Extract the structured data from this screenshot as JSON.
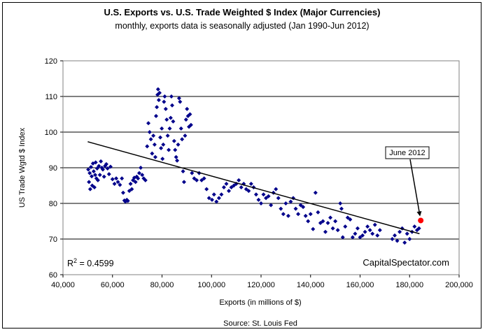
{
  "chart_data": {
    "type": "scatter",
    "title": "U.S. Exports vs. U.S. Trade Weighted $ Index (Major Currencies)",
    "subtitle": "monthly, exports data is seasonally adjusted (Jan 1990-Jun 2012)",
    "xlabel": "Exports (in millions of $)",
    "ylabel": "US Trade Wgtd $ Index",
    "source": "Source: St. Louis Fed",
    "brand": "CapitalSpectator.com",
    "r2_label": "R",
    "r2_sup": "2",
    "r2_value": " = 0.4599",
    "xlim": [
      40000,
      200000
    ],
    "ylim": [
      60,
      120
    ],
    "x_ticks": [
      "40,000",
      "60,000",
      "80,000",
      "100,000",
      "120,000",
      "140,000",
      "160,000",
      "180,000",
      "200,000"
    ],
    "y_ticks": [
      "60",
      "70",
      "80",
      "90",
      "100",
      "110",
      "120"
    ],
    "grid": "horizontal major gridlines",
    "trendline": {
      "x": [
        50000,
        184000
      ],
      "y": [
        97.3,
        71.5
      ]
    },
    "highlight": {
      "label": "June 2012",
      "x": 184500,
      "y": 75.2,
      "color": "#ff0000"
    },
    "series": [
      {
        "color": "#00008b",
        "points": [
          [
            50200,
            89.5
          ],
          [
            50500,
            86.0
          ],
          [
            50800,
            88.5
          ],
          [
            51000,
            84.0
          ],
          [
            51300,
            90.2
          ],
          [
            51600,
            87.6
          ],
          [
            51800,
            85.0
          ],
          [
            52100,
            91.2
          ],
          [
            52400,
            89.0
          ],
          [
            52700,
            84.5
          ],
          [
            53000,
            88.0
          ],
          [
            53200,
            91.5
          ],
          [
            53500,
            87.0
          ],
          [
            53800,
            89.8
          ],
          [
            54100,
            86.5
          ],
          [
            54500,
            90.5
          ],
          [
            54900,
            88.0
          ],
          [
            55300,
            91.8
          ],
          [
            55700,
            90.0
          ],
          [
            56100,
            89.5
          ],
          [
            56600,
            87.5
          ],
          [
            57000,
            90.5
          ],
          [
            57500,
            91.0
          ],
          [
            58000,
            89.8
          ],
          [
            58600,
            88.2
          ],
          [
            59200,
            90.3
          ],
          [
            60000,
            86.8
          ],
          [
            60800,
            85.5
          ],
          [
            61500,
            87.0
          ],
          [
            62200,
            86.0
          ],
          [
            63000,
            85.2
          ],
          [
            63800,
            87.0
          ],
          [
            64300,
            83.0
          ],
          [
            64800,
            80.8
          ],
          [
            65200,
            80.5
          ],
          [
            65800,
            81.0
          ],
          [
            66200,
            80.7
          ],
          [
            66800,
            83.5
          ],
          [
            67300,
            85.5
          ],
          [
            67800,
            84.0
          ],
          [
            68300,
            86.5
          ],
          [
            68800,
            87.2
          ],
          [
            69300,
            86.0
          ],
          [
            69800,
            87.5
          ],
          [
            70300,
            87.0
          ],
          [
            70800,
            88.5
          ],
          [
            71400,
            90.0
          ],
          [
            72000,
            88.0
          ],
          [
            72600,
            87.0
          ],
          [
            73300,
            86.5
          ],
          [
            74000,
            96.0
          ],
          [
            74500,
            102.5
          ],
          [
            75000,
            100.0
          ],
          [
            75500,
            98.0
          ],
          [
            76000,
            94.0
          ],
          [
            76500,
            99.0
          ],
          [
            77000,
            96.5
          ],
          [
            77300,
            93.0
          ],
          [
            77600,
            104.5
          ],
          [
            77900,
            107.0
          ],
          [
            78200,
            110.5
          ],
          [
            78400,
            112.0
          ],
          [
            78700,
            109.0
          ],
          [
            79000,
            111.0
          ],
          [
            79300,
            98.5
          ],
          [
            79600,
            95.5
          ],
          [
            79900,
            101.0
          ],
          [
            80200,
            92.5
          ],
          [
            80500,
            96.5
          ],
          [
            80800,
            108.5
          ],
          [
            81100,
            110.0
          ],
          [
            81500,
            106.5
          ],
          [
            81900,
            103.5
          ],
          [
            82300,
            99.0
          ],
          [
            82700,
            95.0
          ],
          [
            83100,
            101.0
          ],
          [
            83500,
            104.0
          ],
          [
            83800,
            110.0
          ],
          [
            84100,
            107.5
          ],
          [
            84500,
            103.0
          ],
          [
            84900,
            97.5
          ],
          [
            85300,
            95.0
          ],
          [
            85700,
            93.0
          ],
          [
            86100,
            92.0
          ],
          [
            86500,
            96.5
          ],
          [
            86900,
            109.5
          ],
          [
            87300,
            108.5
          ],
          [
            87700,
            101.0
          ],
          [
            88100,
            98.0
          ],
          [
            88500,
            89.0
          ],
          [
            88900,
            86.0
          ],
          [
            89300,
            99.0
          ],
          [
            89700,
            103.5
          ],
          [
            90100,
            106.5
          ],
          [
            90500,
            104.5
          ],
          [
            90900,
            101.5
          ],
          [
            91300,
            105.0
          ],
          [
            91700,
            102.0
          ],
          [
            92100,
            88.5
          ],
          [
            93000,
            87.0
          ],
          [
            94000,
            86.5
          ],
          [
            95000,
            88.5
          ],
          [
            96000,
            86.5
          ],
          [
            97000,
            87.0
          ],
          [
            98000,
            84.0
          ],
          [
            99000,
            81.5
          ],
          [
            100200,
            81.0
          ],
          [
            101000,
            82.5
          ],
          [
            102000,
            80.5
          ],
          [
            103000,
            81.5
          ],
          [
            104000,
            82.5
          ],
          [
            105000,
            84.5
          ],
          [
            106000,
            85.5
          ],
          [
            107000,
            83.5
          ],
          [
            108000,
            84.5
          ],
          [
            109000,
            85.0
          ],
          [
            110000,
            85.5
          ],
          [
            111000,
            86.5
          ],
          [
            112000,
            84.5
          ],
          [
            113000,
            85.5
          ],
          [
            114000,
            84.0
          ],
          [
            115000,
            83.5
          ],
          [
            116000,
            85.5
          ],
          [
            117000,
            84.5
          ],
          [
            118000,
            82.5
          ],
          [
            119000,
            81.0
          ],
          [
            120000,
            80.0
          ],
          [
            121000,
            82.5
          ],
          [
            122000,
            81.5
          ],
          [
            123000,
            82.0
          ],
          [
            124000,
            79.5
          ],
          [
            125000,
            83.0
          ],
          [
            126000,
            84.0
          ],
          [
            127000,
            81.5
          ],
          [
            128000,
            78.5
          ],
          [
            129000,
            77.0
          ],
          [
            130000,
            80.0
          ],
          [
            131000,
            76.5
          ],
          [
            132000,
            80.5
          ],
          [
            133000,
            81.5
          ],
          [
            134000,
            78.5
          ],
          [
            135000,
            77.0
          ],
          [
            136000,
            79.5
          ],
          [
            137000,
            79.0
          ],
          [
            138000,
            76.5
          ],
          [
            139000,
            75.0
          ],
          [
            140000,
            77.0
          ],
          [
            141000,
            72.8
          ],
          [
            142000,
            83.0
          ],
          [
            143000,
            77.5
          ],
          [
            144000,
            74.5
          ],
          [
            145000,
            75.0
          ],
          [
            146000,
            72.0
          ],
          [
            147000,
            74.5
          ],
          [
            148000,
            76.0
          ],
          [
            149000,
            73.0
          ],
          [
            150000,
            75.0
          ],
          [
            151000,
            72.5
          ],
          [
            152000,
            80.0
          ],
          [
            152500,
            78.5
          ],
          [
            153000,
            70.5
          ],
          [
            154000,
            73.5
          ],
          [
            155000,
            76.0
          ],
          [
            156000,
            75.5
          ],
          [
            157000,
            70.5
          ],
          [
            158000,
            71.5
          ],
          [
            159000,
            73.0
          ],
          [
            160000,
            70.5
          ],
          [
            161000,
            71.0
          ],
          [
            162000,
            72.0
          ],
          [
            163000,
            73.5
          ],
          [
            164000,
            72.5
          ],
          [
            165000,
            71.5
          ],
          [
            166000,
            74.0
          ],
          [
            167000,
            71.0
          ],
          [
            168000,
            72.5
          ],
          [
            173000,
            70.0
          ],
          [
            174000,
            71.0
          ],
          [
            175000,
            69.5
          ],
          [
            176000,
            72.0
          ],
          [
            177000,
            73.0
          ],
          [
            178000,
            69.0
          ],
          [
            179000,
            71.5
          ],
          [
            180000,
            70.0
          ],
          [
            181000,
            72.0
          ],
          [
            182000,
            73.5
          ],
          [
            183000,
            72.5
          ],
          [
            183800,
            73.0
          ]
        ]
      }
    ]
  }
}
